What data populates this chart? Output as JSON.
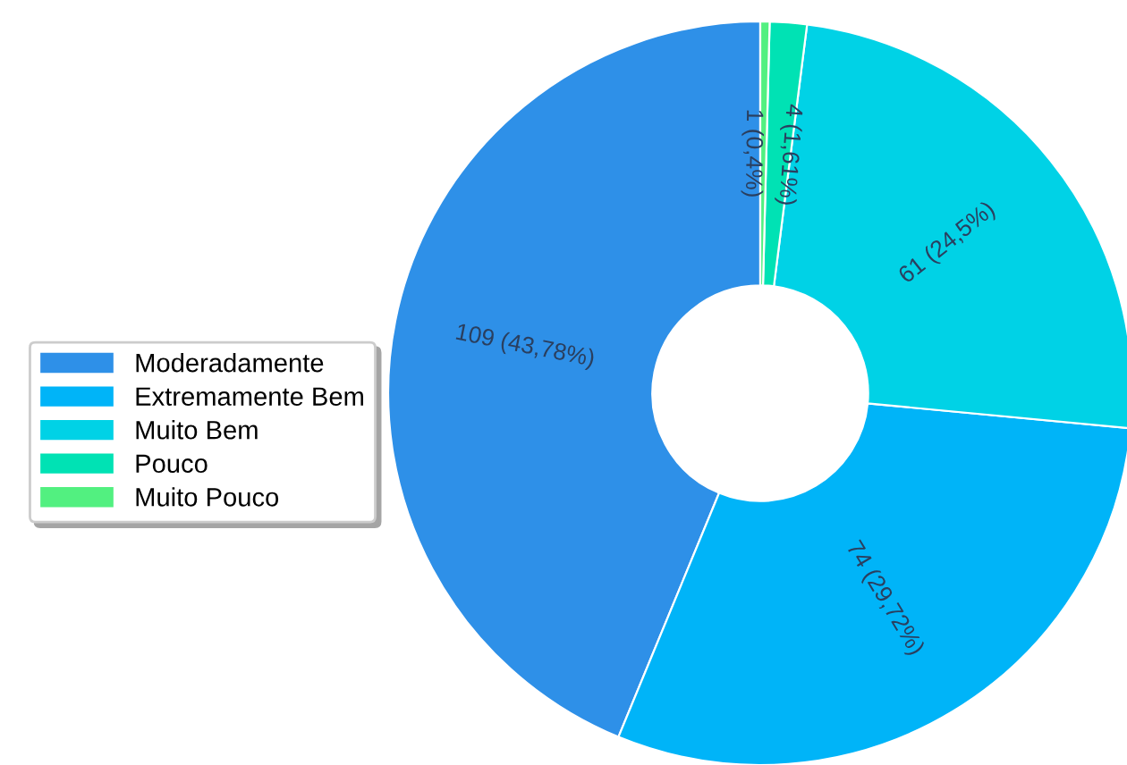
{
  "chart_data": {
    "type": "donut",
    "categories": [
      "Moderadamente",
      "Extremamente Bem",
      "Muito Bem",
      "Pouco",
      "Muito Pouco"
    ],
    "values": [
      109,
      74,
      61,
      4,
      1
    ],
    "value_labels": [
      "109 (43,78%)",
      "74 (29,72%)",
      "61 (24,5%)",
      "4 (1,61%)",
      "1 (0,4%)"
    ],
    "colors": [
      "#2e90e8",
      "#00b4f8",
      "#00d2e6",
      "#00e2b4",
      "#52f080"
    ],
    "legend": "left"
  }
}
